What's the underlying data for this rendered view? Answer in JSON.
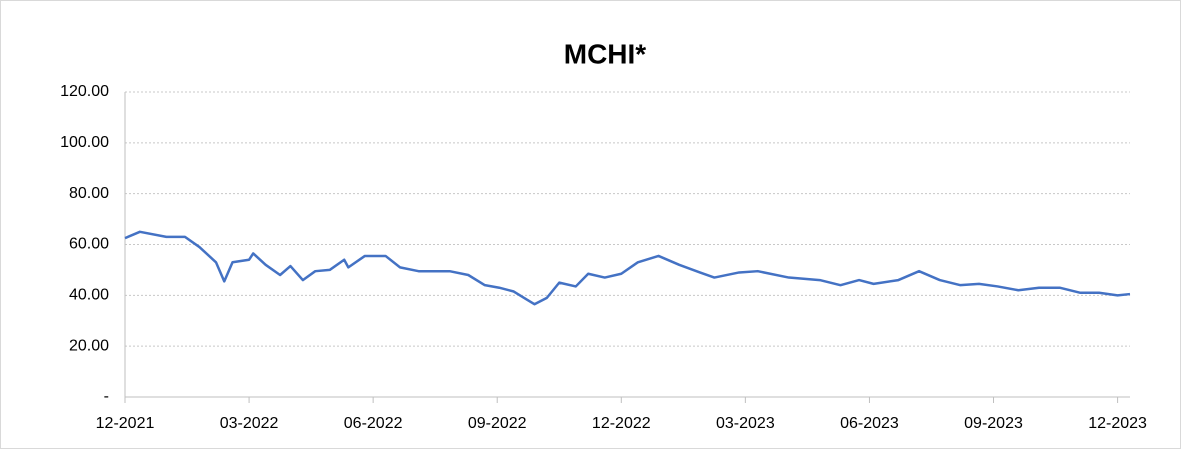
{
  "chart_data": {
    "type": "line",
    "title": "MCHI*",
    "x": [
      0,
      0.36,
      1,
      1.45,
      1.8,
      2.2,
      2.4,
      2.6,
      3,
      3.1,
      3.4,
      3.75,
      4.0,
      4.3,
      4.6,
      4.95,
      5.3,
      5.4,
      5.8,
      6.3,
      6.65,
      7.1,
      7.85,
      8.3,
      8.7,
      9.05,
      9.4,
      9.7,
      9.9,
      10.2,
      10.5,
      10.9,
      11.2,
      11.6,
      12,
      12.4,
      12.9,
      13.4,
      13.9,
      14.25,
      14.85,
      15.3,
      16.05,
      16.8,
      17.3,
      17.75,
      18.1,
      18.7,
      19.2,
      19.7,
      20.2,
      20.65,
      21.1,
      21.6,
      22.1,
      22.6,
      23.1,
      23.55,
      24,
      24.3
    ],
    "series": [
      {
        "name": "MCHI*",
        "color": "#4472c4",
        "values": [
          62.5,
          65,
          63,
          63,
          59,
          53,
          45.5,
          53,
          54,
          56.5,
          52,
          48,
          51.5,
          46,
          49.5,
          50,
          54,
          51,
          55.5,
          55.5,
          51,
          49.5,
          49.5,
          48,
          44,
          43,
          41.5,
          38.5,
          36.5,
          39,
          45,
          43.5,
          48.5,
          47,
          48.5,
          53,
          55.5,
          52,
          49,
          47,
          49,
          49.5,
          47,
          46,
          44,
          46,
          44.5,
          46,
          49.5,
          46,
          44,
          44.5,
          43.5,
          42,
          43,
          43,
          41,
          41,
          40,
          40.5
        ]
      }
    ],
    "xlim": [
      0,
      24.3
    ],
    "xticks": [
      {
        "value": 0,
        "label": "12-2021"
      },
      {
        "value": 3,
        "label": "03-2022"
      },
      {
        "value": 6,
        "label": "06-2022"
      },
      {
        "value": 9,
        "label": "09-2022"
      },
      {
        "value": 12,
        "label": "12-2022"
      },
      {
        "value": 15,
        "label": "03-2023"
      },
      {
        "value": 18,
        "label": "06-2023"
      },
      {
        "value": 21,
        "label": "09-2023"
      },
      {
        "value": 24,
        "label": "12-2023"
      }
    ],
    "ylim": [
      0,
      120
    ],
    "yticks": [
      {
        "value": 0,
        "label": "-"
      },
      {
        "value": 20,
        "label": "20.00"
      },
      {
        "value": 40,
        "label": "40.00"
      },
      {
        "value": 60,
        "label": "60.00"
      },
      {
        "value": 80,
        "label": "80.00"
      },
      {
        "value": 100,
        "label": "100.00"
      },
      {
        "value": 120,
        "label": "120.00"
      }
    ],
    "grid": true
  }
}
